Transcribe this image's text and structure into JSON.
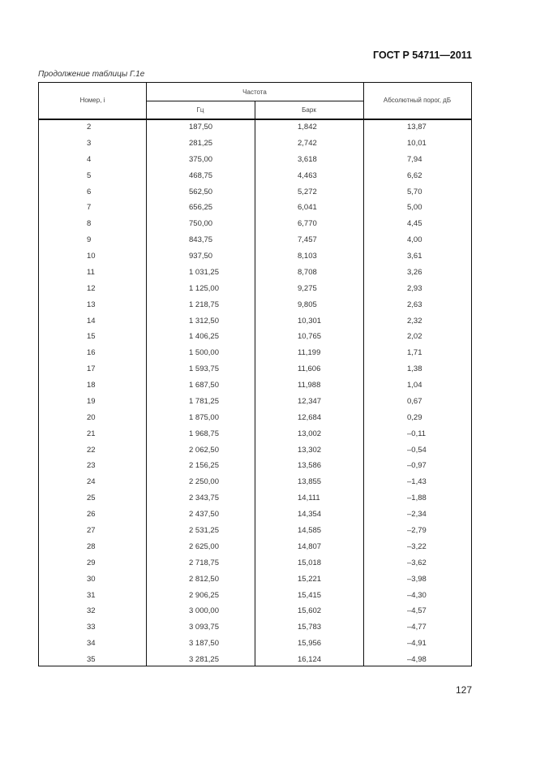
{
  "header": {
    "document_id": "ГОСТ Р 54711—2011"
  },
  "caption": "Продолжение таблицы Г.1е",
  "table": {
    "headers": {
      "number": "Номер, i",
      "frequency": "Частота",
      "hz": "Гц",
      "bark": "Барк",
      "threshold": "Абсолютный порог, дБ"
    },
    "rows": [
      [
        "2",
        "187,50",
        "1,842",
        "13,87"
      ],
      [
        "3",
        "281,25",
        "2,742",
        "10,01"
      ],
      [
        "4",
        "375,00",
        "3,618",
        "7,94"
      ],
      [
        "5",
        "468,75",
        "4,463",
        "6,62"
      ],
      [
        "6",
        "562,50",
        "5,272",
        "5,70"
      ],
      [
        "7",
        "656,25",
        "6,041",
        "5,00"
      ],
      [
        "8",
        "750,00",
        "6,770",
        "4,45"
      ],
      [
        "9",
        "843,75",
        "7,457",
        "4,00"
      ],
      [
        "10",
        "937,50",
        "8,103",
        "3,61"
      ],
      [
        "11",
        "1 031,25",
        "8,708",
        "3,26"
      ],
      [
        "12",
        "1 125,00",
        "9,275",
        "2,93"
      ],
      [
        "13",
        "1 218,75",
        "9,805",
        "2,63"
      ],
      [
        "14",
        "1 312,50",
        "10,301",
        "2,32"
      ],
      [
        "15",
        "1 406,25",
        "10,765",
        "2,02"
      ],
      [
        "16",
        "1 500,00",
        "11,199",
        "1,71"
      ],
      [
        "17",
        "1 593,75",
        "11,606",
        "1,38"
      ],
      [
        "18",
        "1 687,50",
        "11,988",
        "1,04"
      ],
      [
        "19",
        "1 781,25",
        "12,347",
        "0,67"
      ],
      [
        "20",
        "1 875,00",
        "12,684",
        "0,29"
      ],
      [
        "21",
        "1 968,75",
        "13,002",
        "–0,11"
      ],
      [
        "22",
        "2 062,50",
        "13,302",
        "–0,54"
      ],
      [
        "23",
        "2 156,25",
        "13,586",
        "–0,97"
      ],
      [
        "24",
        "2 250,00",
        "13,855",
        "–1,43"
      ],
      [
        "25",
        "2 343,75",
        "14,111",
        "–1,88"
      ],
      [
        "26",
        "2 437,50",
        "14,354",
        "–2,34"
      ],
      [
        "27",
        "2 531,25",
        "14,585",
        "–2,79"
      ],
      [
        "28",
        "2 625,00",
        "14,807",
        "–3,22"
      ],
      [
        "29",
        "2 718,75",
        "15,018",
        "–3,62"
      ],
      [
        "30",
        "2 812,50",
        "15,221",
        "–3,98"
      ],
      [
        "31",
        "2 906,25",
        "15,415",
        "–4,30"
      ],
      [
        "32",
        "3 000,00",
        "15,602",
        "–4,57"
      ],
      [
        "33",
        "3 093,75",
        "15,783",
        "–4,77"
      ],
      [
        "34",
        "3 187,50",
        "15,956",
        "–4,91"
      ],
      [
        "35",
        "3 281,25",
        "16,124",
        "–4,98"
      ]
    ]
  },
  "footer": {
    "page_number": "127"
  }
}
